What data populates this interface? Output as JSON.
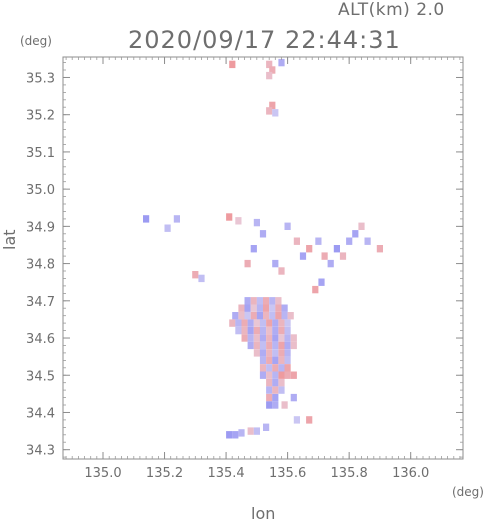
{
  "header": {
    "altitude_label": "ALT(km) 2.0",
    "timestamp": "2020/09/17 22:44:31"
  },
  "axes": {
    "y_unit": "(deg)",
    "x_unit": "(deg)",
    "xlabel": "lon",
    "ylabel": "lat"
  },
  "chart_data": {
    "type": "heatmap",
    "title": "",
    "xlabel": "lon",
    "ylabel": "lat",
    "xlim": [
      134.87,
      136.17
    ],
    "ylim": [
      34.275,
      35.355
    ],
    "xticks": [
      135.0,
      135.2,
      135.4,
      135.6,
      135.8,
      136.0
    ],
    "xtick_labels": [
      "135.0",
      "135.2",
      "135.4",
      "135.6",
      "135.8",
      "136.0"
    ],
    "yticks": [
      34.3,
      34.4,
      34.5,
      34.6,
      34.7,
      34.8,
      34.9,
      35.0,
      35.1,
      35.2,
      35.3
    ],
    "ytick_labels": [
      "34.3",
      "34.4",
      "34.5",
      "34.6",
      "34.7",
      "34.8",
      "34.9",
      "35.0",
      "35.1",
      "35.2",
      "35.3"
    ],
    "grid": false,
    "colors": {
      "positive": "#f08a8a",
      "negative": "#8a8af2",
      "neutral": "#e6e0f4"
    },
    "cells": [
      {
        "lon": 135.54,
        "lat": 35.335,
        "v": 0.5
      },
      {
        "lon": 135.55,
        "lat": 35.32,
        "v": 0.6
      },
      {
        "lon": 135.54,
        "lat": 35.305,
        "v": 0.4
      },
      {
        "lon": 135.55,
        "lat": 35.225,
        "v": 0.7
      },
      {
        "lon": 135.54,
        "lat": 35.21,
        "v": 0.5
      },
      {
        "lon": 135.56,
        "lat": 35.205,
        "v": -0.3
      },
      {
        "lon": 135.42,
        "lat": 35.335,
        "v": 0.8
      },
      {
        "lon": 135.58,
        "lat": 35.34,
        "v": -0.6
      },
      {
        "lon": 135.14,
        "lat": 34.92,
        "v": -0.8
      },
      {
        "lon": 135.24,
        "lat": 34.92,
        "v": -0.5
      },
      {
        "lon": 135.21,
        "lat": 34.895,
        "v": -0.4
      },
      {
        "lon": 135.41,
        "lat": 34.925,
        "v": 0.8
      },
      {
        "lon": 135.44,
        "lat": 34.915,
        "v": 0.3
      },
      {
        "lon": 135.5,
        "lat": 34.91,
        "v": -0.5
      },
      {
        "lon": 135.52,
        "lat": 34.88,
        "v": -0.6
      },
      {
        "lon": 135.49,
        "lat": 34.84,
        "v": -0.7
      },
      {
        "lon": 135.47,
        "lat": 34.8,
        "v": 0.6
      },
      {
        "lon": 135.6,
        "lat": 34.9,
        "v": -0.5
      },
      {
        "lon": 135.63,
        "lat": 34.86,
        "v": 0.5
      },
      {
        "lon": 135.65,
        "lat": 34.82,
        "v": -0.7
      },
      {
        "lon": 135.67,
        "lat": 34.84,
        "v": 0.7
      },
      {
        "lon": 135.7,
        "lat": 34.86,
        "v": -0.5
      },
      {
        "lon": 135.72,
        "lat": 34.82,
        "v": 0.6
      },
      {
        "lon": 135.74,
        "lat": 34.8,
        "v": -0.6
      },
      {
        "lon": 135.76,
        "lat": 34.84,
        "v": -0.8
      },
      {
        "lon": 135.78,
        "lat": 34.82,
        "v": 0.5
      },
      {
        "lon": 135.8,
        "lat": 34.86,
        "v": -0.6
      },
      {
        "lon": 135.82,
        "lat": 34.88,
        "v": -0.7
      },
      {
        "lon": 135.84,
        "lat": 34.9,
        "v": 0.4
      },
      {
        "lon": 135.86,
        "lat": 34.86,
        "v": -0.5
      },
      {
        "lon": 135.9,
        "lat": 34.84,
        "v": 0.6
      },
      {
        "lon": 135.71,
        "lat": 34.75,
        "v": -0.7
      },
      {
        "lon": 135.69,
        "lat": 34.73,
        "v": 0.7
      },
      {
        "lon": 135.3,
        "lat": 34.77,
        "v": 0.6
      },
      {
        "lon": 135.32,
        "lat": 34.76,
        "v": -0.4
      },
      {
        "lon": 135.56,
        "lat": 34.8,
        "v": -0.6
      },
      {
        "lon": 135.58,
        "lat": 34.78,
        "v": 0.5
      },
      {
        "lon": 135.47,
        "lat": 34.7,
        "v": -0.6
      },
      {
        "lon": 135.49,
        "lat": 34.7,
        "v": 0.5
      },
      {
        "lon": 135.51,
        "lat": 34.7,
        "v": -0.4
      },
      {
        "lon": 135.53,
        "lat": 34.7,
        "v": 0.6
      },
      {
        "lon": 135.55,
        "lat": 34.7,
        "v": -0.5
      },
      {
        "lon": 135.57,
        "lat": 34.7,
        "v": 0.4
      },
      {
        "lon": 135.45,
        "lat": 34.68,
        "v": 0.5
      },
      {
        "lon": 135.47,
        "lat": 34.68,
        "v": -0.7
      },
      {
        "lon": 135.49,
        "lat": 34.68,
        "v": 0.3
      },
      {
        "lon": 135.51,
        "lat": 34.68,
        "v": -0.5
      },
      {
        "lon": 135.53,
        "lat": 34.68,
        "v": 0.7
      },
      {
        "lon": 135.55,
        "lat": 34.68,
        "v": -0.3
      },
      {
        "lon": 135.57,
        "lat": 34.68,
        "v": 0.6
      },
      {
        "lon": 135.59,
        "lat": 34.68,
        "v": -0.6
      },
      {
        "lon": 135.43,
        "lat": 34.66,
        "v": -0.6
      },
      {
        "lon": 135.45,
        "lat": 34.66,
        "v": 0.4
      },
      {
        "lon": 135.47,
        "lat": 34.66,
        "v": -0.3
      },
      {
        "lon": 135.49,
        "lat": 34.66,
        "v": 0.6
      },
      {
        "lon": 135.51,
        "lat": 34.66,
        "v": -0.7
      },
      {
        "lon": 135.53,
        "lat": 34.66,
        "v": 0.5
      },
      {
        "lon": 135.55,
        "lat": 34.66,
        "v": -0.4
      },
      {
        "lon": 135.57,
        "lat": 34.66,
        "v": 0.7
      },
      {
        "lon": 135.59,
        "lat": 34.66,
        "v": -0.5
      },
      {
        "lon": 135.61,
        "lat": 34.66,
        "v": 0.4
      },
      {
        "lon": 135.42,
        "lat": 34.64,
        "v": 0.5
      },
      {
        "lon": 135.44,
        "lat": 34.64,
        "v": -0.5
      },
      {
        "lon": 135.46,
        "lat": 34.64,
        "v": 0.6
      },
      {
        "lon": 135.48,
        "lat": 34.64,
        "v": -0.6
      },
      {
        "lon": 135.5,
        "lat": 34.64,
        "v": 0.3
      },
      {
        "lon": 135.52,
        "lat": 34.64,
        "v": -0.4
      },
      {
        "lon": 135.54,
        "lat": 34.64,
        "v": 0.7
      },
      {
        "lon": 135.56,
        "lat": 34.64,
        "v": -0.6
      },
      {
        "lon": 135.58,
        "lat": 34.64,
        "v": 0.5
      },
      {
        "lon": 135.6,
        "lat": 34.64,
        "v": -0.3
      },
      {
        "lon": 135.44,
        "lat": 34.62,
        "v": -0.4
      },
      {
        "lon": 135.46,
        "lat": 34.62,
        "v": 0.5
      },
      {
        "lon": 135.48,
        "lat": 34.62,
        "v": -0.7
      },
      {
        "lon": 135.5,
        "lat": 34.62,
        "v": 0.6
      },
      {
        "lon": 135.52,
        "lat": 34.62,
        "v": -0.5
      },
      {
        "lon": 135.54,
        "lat": 34.62,
        "v": 0.4
      },
      {
        "lon": 135.56,
        "lat": 34.62,
        "v": -0.6
      },
      {
        "lon": 135.58,
        "lat": 34.62,
        "v": 0.6
      },
      {
        "lon": 135.6,
        "lat": 34.62,
        "v": -0.4
      },
      {
        "lon": 135.46,
        "lat": 34.6,
        "v": 0.6
      },
      {
        "lon": 135.48,
        "lat": 34.6,
        "v": -0.5
      },
      {
        "lon": 135.5,
        "lat": 34.6,
        "v": 0.4
      },
      {
        "lon": 135.52,
        "lat": 34.6,
        "v": -0.6
      },
      {
        "lon": 135.54,
        "lat": 34.6,
        "v": 0.5
      },
      {
        "lon": 135.56,
        "lat": 34.6,
        "v": -0.7
      },
      {
        "lon": 135.58,
        "lat": 34.6,
        "v": 0.3
      },
      {
        "lon": 135.6,
        "lat": 34.6,
        "v": -0.5
      },
      {
        "lon": 135.62,
        "lat": 34.6,
        "v": 0.4
      },
      {
        "lon": 135.48,
        "lat": 34.58,
        "v": -0.6
      },
      {
        "lon": 135.5,
        "lat": 34.58,
        "v": 0.5
      },
      {
        "lon": 135.52,
        "lat": 34.58,
        "v": -0.4
      },
      {
        "lon": 135.54,
        "lat": 34.58,
        "v": 0.6
      },
      {
        "lon": 135.56,
        "lat": 34.58,
        "v": -0.5
      },
      {
        "lon": 135.58,
        "lat": 34.58,
        "v": 0.7
      },
      {
        "lon": 135.6,
        "lat": 34.58,
        "v": -0.6
      },
      {
        "lon": 135.62,
        "lat": 34.58,
        "v": 0.4
      },
      {
        "lon": 135.5,
        "lat": 34.56,
        "v": 0.4
      },
      {
        "lon": 135.52,
        "lat": 34.56,
        "v": -0.6
      },
      {
        "lon": 135.54,
        "lat": 34.56,
        "v": 0.5
      },
      {
        "lon": 135.56,
        "lat": 34.56,
        "v": -0.4
      },
      {
        "lon": 135.58,
        "lat": 34.56,
        "v": 0.6
      },
      {
        "lon": 135.6,
        "lat": 34.56,
        "v": -0.5
      },
      {
        "lon": 135.52,
        "lat": 34.54,
        "v": -0.5
      },
      {
        "lon": 135.54,
        "lat": 34.54,
        "v": 0.6
      },
      {
        "lon": 135.56,
        "lat": 34.54,
        "v": -0.7
      },
      {
        "lon": 135.58,
        "lat": 34.54,
        "v": 0.5
      },
      {
        "lon": 135.6,
        "lat": 34.54,
        "v": -0.4
      },
      {
        "lon": 135.52,
        "lat": 34.52,
        "v": 0.5
      },
      {
        "lon": 135.54,
        "lat": 34.52,
        "v": -0.4
      },
      {
        "lon": 135.56,
        "lat": 34.52,
        "v": 0.6
      },
      {
        "lon": 135.58,
        "lat": 34.52,
        "v": -0.5
      },
      {
        "lon": 135.6,
        "lat": 34.52,
        "v": 0.7
      },
      {
        "lon": 135.52,
        "lat": 34.5,
        "v": -0.6
      },
      {
        "lon": 135.54,
        "lat": 34.5,
        "v": 0.4
      },
      {
        "lon": 135.56,
        "lat": 34.5,
        "v": -0.5
      },
      {
        "lon": 135.58,
        "lat": 34.5,
        "v": 0.8
      },
      {
        "lon": 135.6,
        "lat": 34.5,
        "v": 0.6
      },
      {
        "lon": 135.62,
        "lat": 34.5,
        "v": 0.7
      },
      {
        "lon": 135.54,
        "lat": 34.48,
        "v": 0.5
      },
      {
        "lon": 135.56,
        "lat": 34.48,
        "v": -0.6
      },
      {
        "lon": 135.58,
        "lat": 34.48,
        "v": 0.4
      },
      {
        "lon": 135.54,
        "lat": 34.46,
        "v": -0.5
      },
      {
        "lon": 135.56,
        "lat": 34.46,
        "v": 0.5
      },
      {
        "lon": 135.58,
        "lat": 34.46,
        "v": -0.4
      },
      {
        "lon": 135.54,
        "lat": 34.44,
        "v": 0.6
      },
      {
        "lon": 135.56,
        "lat": 34.44,
        "v": -0.7
      },
      {
        "lon": 135.62,
        "lat": 34.44,
        "v": -0.6
      },
      {
        "lon": 135.54,
        "lat": 34.42,
        "v": -0.8
      },
      {
        "lon": 135.56,
        "lat": 34.42,
        "v": -0.6
      },
      {
        "lon": 135.59,
        "lat": 34.42,
        "v": 0.4
      },
      {
        "lon": 135.67,
        "lat": 34.38,
        "v": 0.7
      },
      {
        "lon": 135.63,
        "lat": 34.38,
        "v": -0.3
      },
      {
        "lon": 135.41,
        "lat": 34.34,
        "v": -0.8
      },
      {
        "lon": 135.43,
        "lat": 34.34,
        "v": -0.7
      },
      {
        "lon": 135.45,
        "lat": 34.345,
        "v": -0.5
      },
      {
        "lon": 135.48,
        "lat": 34.35,
        "v": 0.4
      },
      {
        "lon": 135.5,
        "lat": 34.35,
        "v": -0.4
      },
      {
        "lon": 135.53,
        "lat": 34.36,
        "v": -0.5
      }
    ]
  }
}
